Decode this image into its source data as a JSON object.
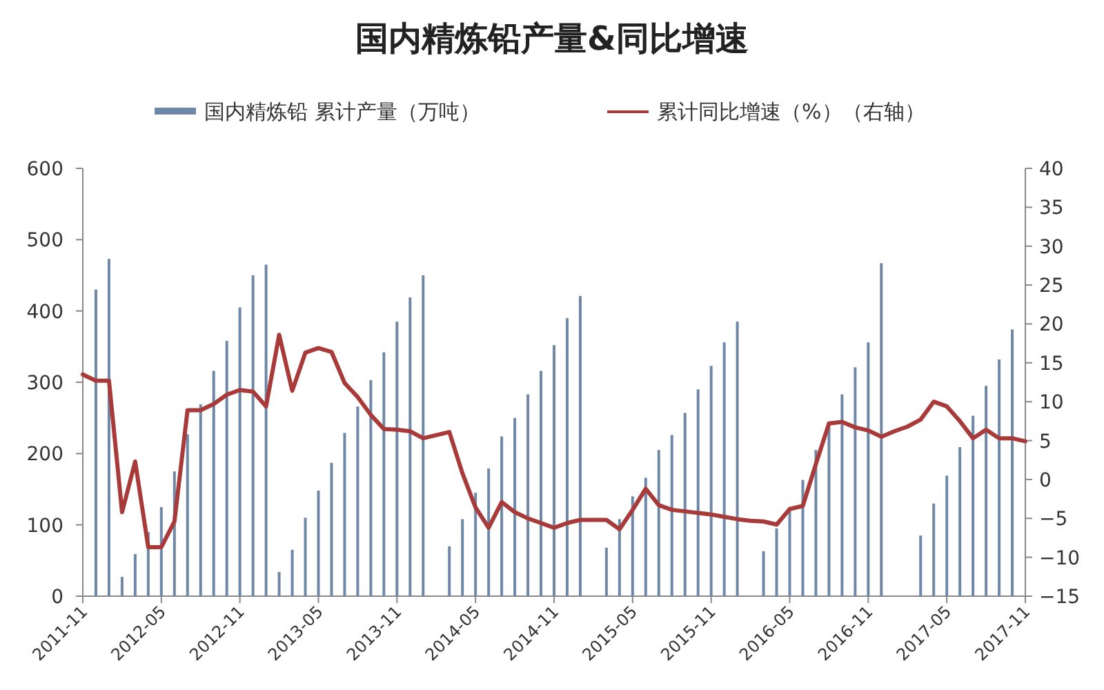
{
  "chart_data": {
    "type": "bar",
    "title": "国内精炼铅产量&同比增速",
    "categories": [
      "2011-11",
      null,
      null,
      null,
      null,
      null,
      "2012-05",
      null,
      null,
      null,
      null,
      null,
      "2012-11",
      null,
      null,
      null,
      null,
      null,
      "2013-05",
      null,
      null,
      null,
      null,
      null,
      "2013-11",
      null,
      null,
      null,
      null,
      null,
      "2014-05",
      null,
      null,
      null,
      null,
      null,
      "2014-11",
      null,
      null,
      null,
      null,
      null,
      "2015-05",
      null,
      null,
      null,
      null,
      null,
      "2015-11",
      null,
      null,
      null,
      null,
      null,
      "2016-05",
      null,
      null,
      null,
      null,
      null,
      "2016-11",
      null,
      null,
      null,
      null,
      null,
      "2017-05",
      null,
      null,
      null,
      null,
      null,
      "2017-11"
    ],
    "series": [
      {
        "name": "国内精炼铅 累计产量（万吨）",
        "color": "#6f88a8",
        "values": [
          null,
          430,
          473,
          27,
          59,
          90,
          125,
          175,
          227,
          269,
          316,
          358,
          405,
          450,
          465,
          34,
          65,
          110,
          148,
          187,
          229,
          266,
          303,
          342,
          385,
          419,
          450,
          null,
          70,
          108,
          145,
          179,
          224,
          250,
          283,
          316,
          352,
          390,
          421,
          null,
          68,
          108,
          140,
          166,
          205,
          226,
          257,
          290,
          323,
          356,
          385,
          null,
          63,
          95,
          120,
          163,
          205,
          245,
          283,
          321,
          356,
          467,
          null,
          null,
          85,
          130,
          169,
          209,
          253,
          295,
          332,
          374,
          null
        ]
      },
      {
        "name": "累计同比增速（%）（右轴）",
        "type": "line",
        "axis": "y2",
        "color": "#a83a3a",
        "values": [
          13.5,
          12.7,
          12.7,
          -4.2,
          2.3,
          -8.7,
          -8.7,
          -5.4,
          8.9,
          8.9,
          9.7,
          10.9,
          11.5,
          11.3,
          9.4,
          18.6,
          11.4,
          16.3,
          16.9,
          16.4,
          12.4,
          10.6,
          8.3,
          6.5,
          6.4,
          6.2,
          5.3,
          5.7,
          6.1,
          0.8,
          -3.6,
          -6.2,
          -2.9,
          -4.2,
          -5.0,
          -5.6,
          -6.2,
          -5.6,
          -5.2,
          -5.2,
          -5.2,
          -6.4,
          -3.9,
          -1.2,
          -3.3,
          -3.9,
          -4.1,
          -4.3,
          -4.5,
          -4.8,
          -5.1,
          -5.3,
          -5.4,
          -5.8,
          -3.8,
          -3.4,
          2.0,
          7.2,
          7.4,
          6.7,
          6.3,
          5.5,
          6.2,
          6.8,
          7.7,
          10.0,
          9.4,
          7.5,
          5.3,
          6.4,
          5.3,
          5.3,
          4.9
        ]
      }
    ],
    "ylim": [
      0,
      600
    ],
    "yticks": [
      0,
      100,
      200,
      300,
      400,
      500,
      600
    ],
    "y2lim": [
      -15,
      40
    ],
    "y2ticks": [
      -15,
      -10,
      -5,
      0,
      5,
      10,
      15,
      20,
      25,
      30,
      35,
      40
    ],
    "legend": "top"
  }
}
